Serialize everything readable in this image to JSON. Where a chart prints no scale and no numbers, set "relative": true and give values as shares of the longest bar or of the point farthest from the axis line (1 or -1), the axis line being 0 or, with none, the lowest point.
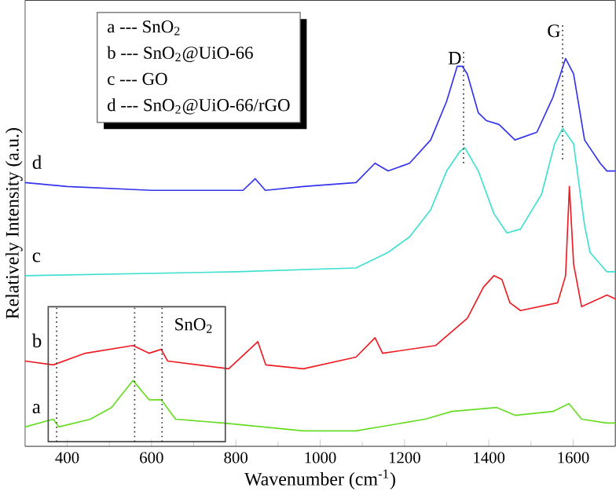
{
  "chart_data": {
    "type": "line",
    "relative": true,
    "xlabel": "Wavenumber (cm$^{-1}$)",
    "ylabel": "Relatively Intensity (a.u.)",
    "xlim": [
      300,
      1700
    ],
    "xticks": [
      400,
      600,
      800,
      1000,
      1200,
      1400,
      1600
    ],
    "series": [
      {
        "name": "a",
        "color": "#66dd22",
        "x": [
          300,
          367,
          380,
          455,
          505,
          556,
          594,
          623,
          657,
          770,
          960,
          1085,
          1249,
          1312,
          1419,
          1462,
          1552,
          1590,
          1620,
          1680,
          1700
        ],
        "values": [
          0.05,
          0.07,
          0.05,
          0.07,
          0.1,
          0.17,
          0.12,
          0.12,
          0.07,
          0.06,
          0.04,
          0.04,
          0.07,
          0.09,
          0.1,
          0.08,
          0.09,
          0.11,
          0.07,
          0.06,
          0.06
        ]
      },
      {
        "name": "b",
        "color": "#ee1c24",
        "x": [
          300,
          367,
          443,
          556,
          594,
          623,
          638,
          783,
          852,
          871,
          960,
          1085,
          1130,
          1148,
          1274,
          1349,
          1387,
          1412,
          1431,
          1450,
          1475,
          1563,
          1582,
          1591,
          1601,
          1620,
          1680,
          1700
        ],
        "values": [
          0.22,
          0.21,
          0.24,
          0.26,
          0.24,
          0.25,
          0.22,
          0.2,
          0.27,
          0.21,
          0.2,
          0.23,
          0.28,
          0.24,
          0.26,
          0.33,
          0.41,
          0.44,
          0.43,
          0.37,
          0.35,
          0.37,
          0.44,
          0.67,
          0.47,
          0.36,
          0.39,
          0.38
        ]
      },
      {
        "name": "c",
        "color": "#40e0d0",
        "x": [
          300,
          800,
          1085,
          1161,
          1212,
          1262,
          1300,
          1331,
          1343,
          1375,
          1412,
          1443,
          1475,
          1525,
          1556,
          1575,
          1601,
          1627,
          1640,
          1680,
          1700
        ],
        "values": [
          0.44,
          0.45,
          0.46,
          0.5,
          0.54,
          0.61,
          0.71,
          0.76,
          0.77,
          0.71,
          0.6,
          0.55,
          0.56,
          0.65,
          0.78,
          0.82,
          0.78,
          0.57,
          0.5,
          0.45,
          0.45
        ]
      },
      {
        "name": "d",
        "color": "#3333ee",
        "x": [
          300,
          400,
          600,
          817,
          846,
          870,
          960,
          1085,
          1130,
          1161,
          1212,
          1262,
          1300,
          1325,
          1337,
          1349,
          1375,
          1394,
          1424,
          1462,
          1514,
          1552,
          1582,
          1601,
          1627,
          1664,
          1680,
          1700
        ],
        "values": [
          0.68,
          0.67,
          0.66,
          0.66,
          0.69,
          0.66,
          0.67,
          0.68,
          0.73,
          0.71,
          0.73,
          0.79,
          0.89,
          0.98,
          0.98,
          0.96,
          0.86,
          0.84,
          0.83,
          0.79,
          0.81,
          0.9,
          1.0,
          0.96,
          0.79,
          0.73,
          0.71,
          0.71
        ]
      }
    ],
    "ref_lines": [
      {
        "axis": "x",
        "value": 1340,
        "label": "D",
        "line_style": "dotted"
      },
      {
        "axis": "x",
        "value": 1575,
        "label": "G",
        "line_style": "dotted"
      },
      {
        "axis": "x",
        "value": 375,
        "line_style": "dotted"
      },
      {
        "axis": "x",
        "value": 560,
        "line_style": "dotted"
      },
      {
        "axis": "x",
        "value": 625,
        "label": "SnO$_{2}$",
        "line_style": "dotted"
      }
    ],
    "annotations": [
      "a --- SnO$_{2}$",
      "b --- SnO$_{2}$@UiO-66",
      "c --- GO",
      "d --- SnO$_{2}$@UiO-66/rGO"
    ],
    "marker": "none",
    "line_style": "solid",
    "grid": false,
    "legend": false
  }
}
